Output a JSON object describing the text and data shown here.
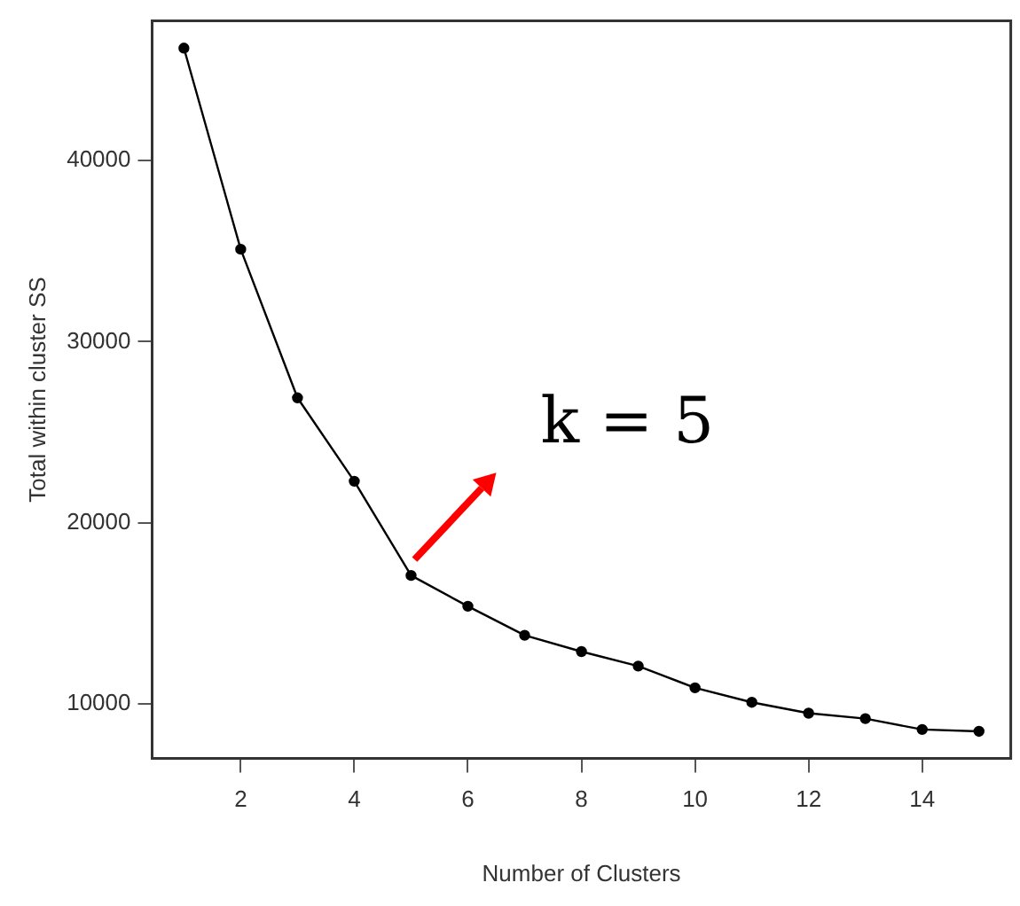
{
  "chart_data": {
    "type": "line",
    "xlabel": "Number of Clusters",
    "ylabel": "Total within cluster SS",
    "x": [
      1,
      2,
      3,
      4,
      5,
      6,
      7,
      8,
      9,
      10,
      11,
      12,
      13,
      14,
      15
    ],
    "series": [
      {
        "color": "#000000",
        "values": [
          46200,
          35100,
          26900,
          22300,
          17100,
          15400,
          13800,
          12900,
          12100,
          10900,
          10100,
          9500,
          9200,
          8600,
          8500
        ]
      }
    ],
    "xlim": [
      0.44,
      15.56
    ],
    "xticks": [
      2,
      4,
      6,
      8,
      10,
      12,
      14
    ],
    "ylim": [
      7000,
      47700
    ],
    "yticks": [
      10000,
      20000,
      30000,
      40000
    ],
    "grid": false,
    "legend": false,
    "marker": "circle",
    "line_style": "solid",
    "annotations": [
      {
        "text": "k = 5",
        "x": 5,
        "y": 17100
      }
    ]
  }
}
